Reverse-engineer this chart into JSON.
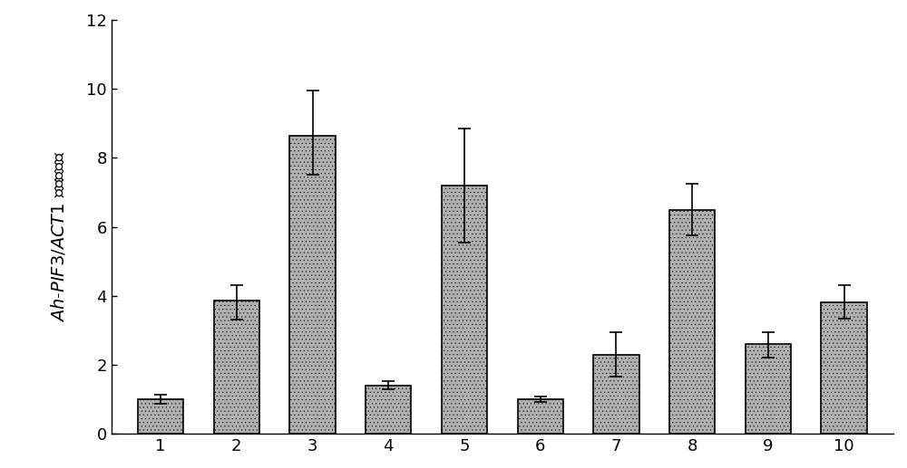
{
  "categories": [
    1,
    2,
    3,
    4,
    5,
    6,
    7,
    8,
    9,
    10
  ],
  "values": [
    1.0,
    3.85,
    8.65,
    1.4,
    7.2,
    1.0,
    2.3,
    6.5,
    2.6,
    3.8
  ],
  "errors_upper": [
    0.12,
    0.45,
    1.3,
    0.12,
    1.65,
    0.08,
    0.65,
    0.75,
    0.35,
    0.5
  ],
  "errors_lower": [
    0.12,
    0.55,
    1.15,
    0.12,
    1.65,
    0.08,
    0.65,
    0.75,
    0.4,
    0.45
  ],
  "bar_color": "#b0b0b0",
  "bar_edgecolor": "#000000",
  "bar_width": 0.6,
  "ylim": [
    0,
    12
  ],
  "yticks": [
    0,
    2,
    4,
    6,
    8,
    10,
    12
  ],
  "background_color": "#ffffff",
  "hatch_pattern": "....",
  "linewidth": 1.2,
  "figsize": [
    10.0,
    5.17
  ],
  "dpi": 100
}
